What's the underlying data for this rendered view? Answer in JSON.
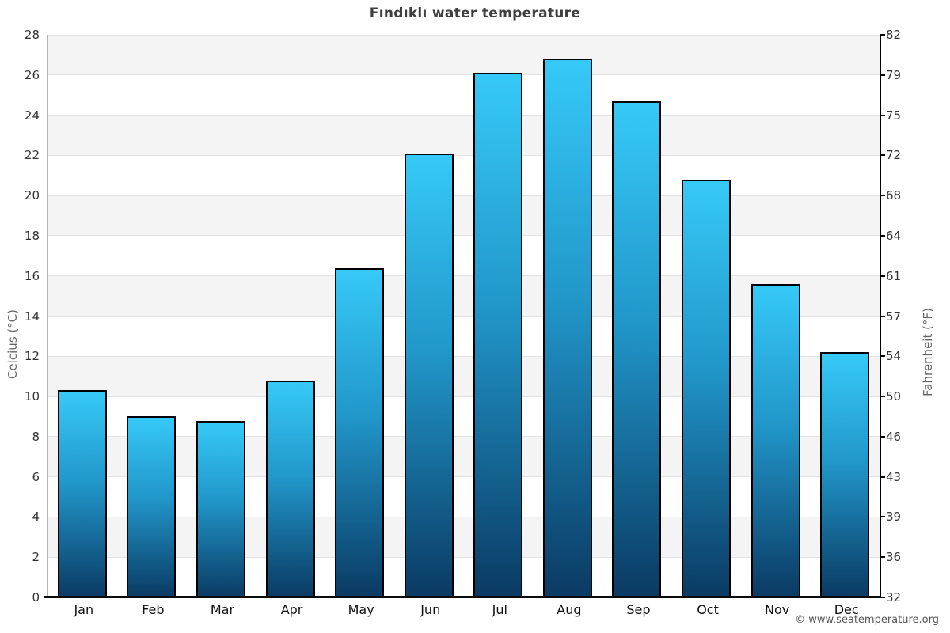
{
  "title": "Fındıklı water temperature",
  "footer": "© www.seatemperature.org",
  "chart_data": {
    "type": "bar",
    "title": "Fındıklı water temperature",
    "categories": [
      "Jan",
      "Feb",
      "Mar",
      "Apr",
      "May",
      "Jun",
      "Jul",
      "Aug",
      "Sep",
      "Oct",
      "Nov",
      "Dec"
    ],
    "values": [
      10.3,
      9.0,
      8.8,
      10.8,
      16.4,
      22.1,
      26.1,
      26.8,
      24.7,
      20.8,
      15.6,
      12.2
    ],
    "unit": "°C",
    "ylabel_left": "Celcius (°C)",
    "ylabel_right": "Fahrenheit (°F)",
    "ylim": [
      0,
      28
    ],
    "ytick_step": 2,
    "yticks_celsius": [
      28,
      26,
      24,
      22,
      20,
      18,
      16,
      14,
      12,
      10,
      8,
      6,
      4,
      2,
      0
    ],
    "yticks_fahrenheit": [
      "82",
      "79",
      "75",
      "72",
      "68",
      "64",
      "61",
      "57",
      "54",
      "50",
      "46",
      "43",
      "39",
      "36",
      "32"
    ],
    "grid": "horizontal",
    "legend": "none",
    "band_colors": [
      "#f4f4f4",
      "#ffffff"
    ],
    "gridline_color": "#e2e2e2",
    "bar_gradient_top": "#36c9f8",
    "bar_gradient_mid": "#2196c9",
    "bar_gradient_bottom": "#0a3a63",
    "bar_border_color": "#000000",
    "axis_left_color": "#b3b3b3",
    "axis_right_color": "#000000",
    "axis_bottom_color": "#0a0a0a"
  }
}
